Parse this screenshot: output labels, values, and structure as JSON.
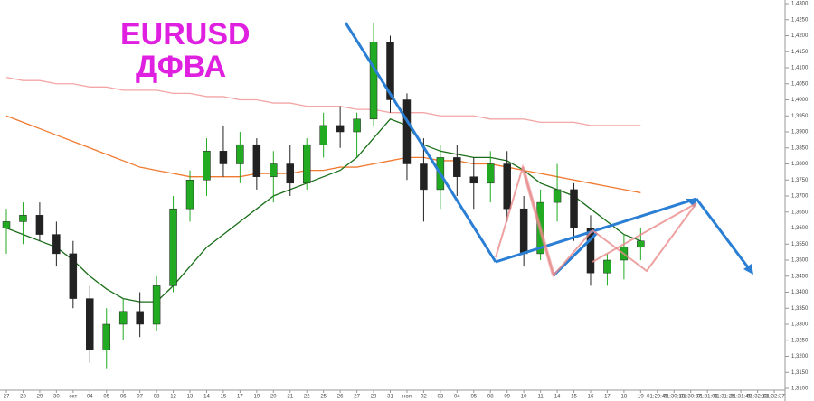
{
  "chart_data": {
    "type": "candlestick",
    "title": "EURUSD",
    "subtitle": "ДФВА",
    "categories": [
      "27",
      "28",
      "29",
      "30",
      "окт",
      "04",
      "05",
      "06",
      "07",
      "08",
      "12",
      "13",
      "14",
      "15",
      "17",
      "19",
      "20",
      "21",
      "22",
      "25",
      "26",
      "27",
      "28",
      "31",
      "ноя",
      "02",
      "03",
      "04",
      "05",
      "08",
      "09",
      "10",
      "11",
      "14",
      "15",
      "16",
      "17",
      "18",
      "19",
      "01:29:49",
      "01:30:13",
      "01:30:37",
      "01:31:01",
      "01:31:25",
      "01:31:49",
      "01:32:13",
      "01:32:37"
    ],
    "open": [
      1.36,
      1.362,
      1.364,
      1.358,
      1.352,
      1.338,
      1.322,
      1.33,
      1.334,
      1.33,
      1.342,
      1.366,
      1.375,
      1.384,
      1.38,
      1.386,
      1.376,
      1.38,
      1.374,
      1.386,
      1.392,
      1.39,
      1.394,
      1.418,
      1.4,
      1.38,
      1.372,
      1.382,
      1.376,
      1.374,
      1.38,
      1.366,
      1.352,
      1.368,
      1.372,
      1.36,
      1.346,
      1.35,
      1.354,
      null,
      null,
      null,
      null,
      null,
      null,
      null,
      null
    ],
    "high": [
      1.366,
      1.368,
      1.368,
      1.362,
      1.356,
      1.342,
      1.335,
      1.338,
      1.34,
      1.345,
      1.37,
      1.378,
      1.388,
      1.392,
      1.39,
      1.388,
      1.384,
      1.386,
      1.388,
      1.396,
      1.398,
      1.396,
      1.424,
      1.42,
      1.402,
      1.388,
      1.386,
      1.386,
      1.382,
      1.384,
      1.384,
      1.37,
      1.372,
      1.38,
      1.374,
      1.364,
      1.352,
      1.358,
      1.36,
      null,
      null,
      null,
      null,
      null,
      null,
      null,
      null
    ],
    "low": [
      1.352,
      1.355,
      1.356,
      1.348,
      1.335,
      1.318,
      1.316,
      1.325,
      1.326,
      1.328,
      1.34,
      1.362,
      1.37,
      1.376,
      1.374,
      1.372,
      1.368,
      1.37,
      1.372,
      1.382,
      1.385,
      1.382,
      1.392,
      1.396,
      1.375,
      1.362,
      1.366,
      1.37,
      1.366,
      1.368,
      1.362,
      1.348,
      1.35,
      1.362,
      1.356,
      1.342,
      1.342,
      1.344,
      1.35,
      null,
      null,
      null,
      null,
      null,
      null,
      null,
      null
    ],
    "close": [
      1.362,
      1.364,
      1.358,
      1.352,
      1.338,
      1.322,
      1.33,
      1.334,
      1.33,
      1.342,
      1.366,
      1.375,
      1.384,
      1.38,
      1.386,
      1.376,
      1.38,
      1.374,
      1.386,
      1.392,
      1.39,
      1.394,
      1.418,
      1.4,
      1.38,
      1.372,
      1.382,
      1.376,
      1.374,
      1.38,
      1.366,
      1.352,
      1.368,
      1.372,
      1.36,
      1.346,
      1.35,
      1.354,
      1.356,
      null,
      null,
      null,
      null,
      null,
      null,
      null,
      null
    ],
    "up_color": "#22aa22",
    "down_color": "#222222",
    "indicator_lines": [
      {
        "color": "#f4a6a6",
        "values": [
          1.407,
          1.406,
          1.406,
          1.405,
          1.405,
          1.404,
          1.404,
          1.403,
          1.403,
          1.403,
          1.402,
          1.402,
          1.401,
          1.401,
          1.4,
          1.4,
          1.399,
          1.399,
          1.398,
          1.398,
          1.398,
          1.397,
          1.397,
          1.396,
          1.396,
          1.396,
          1.395,
          1.395,
          1.395,
          1.394,
          1.394,
          1.394,
          1.393,
          1.393,
          1.393,
          1.392,
          1.392,
          1.392,
          1.392,
          null,
          null,
          null,
          null,
          null,
          null,
          null,
          null
        ]
      },
      {
        "color": "#f07a30",
        "values": [
          1.395,
          1.393,
          1.391,
          1.389,
          1.387,
          1.385,
          1.383,
          1.381,
          1.379,
          1.378,
          1.377,
          1.376,
          1.376,
          1.376,
          1.376,
          1.377,
          1.377,
          1.377,
          1.378,
          1.378,
          1.379,
          1.379,
          1.38,
          1.381,
          1.382,
          1.382,
          1.381,
          1.381,
          1.38,
          1.38,
          1.379,
          1.378,
          1.377,
          1.376,
          1.375,
          1.374,
          1.373,
          1.372,
          1.371,
          null,
          null,
          null,
          null,
          null,
          null,
          null,
          null
        ]
      },
      {
        "color": "#1a6e1a",
        "values": [
          1.36,
          1.358,
          1.356,
          1.354,
          1.35,
          1.345,
          1.341,
          1.338,
          1.337,
          1.337,
          1.342,
          1.348,
          1.354,
          1.358,
          1.362,
          1.366,
          1.37,
          1.372,
          1.374,
          1.376,
          1.378,
          1.382,
          1.388,
          1.394,
          1.392,
          1.386,
          1.384,
          1.383,
          1.382,
          1.382,
          1.381,
          1.378,
          1.374,
          1.372,
          1.37,
          1.366,
          1.362,
          1.358,
          1.356,
          null,
          null,
          null,
          null,
          null,
          null,
          null,
          null
        ]
      }
    ],
    "ylim": [
      1.31,
      1.43
    ],
    "yticks": [
      {
        "value": 1.31,
        "label": "1,3100"
      },
      {
        "value": 1.315,
        "label": "1,3150"
      },
      {
        "value": 1.32,
        "label": "1,3200"
      },
      {
        "value": 1.325,
        "label": "1,3250"
      },
      {
        "value": 1.33,
        "label": "1,3300"
      },
      {
        "value": 1.335,
        "label": "1,3350"
      },
      {
        "value": 1.34,
        "label": "1,3400"
      },
      {
        "value": 1.345,
        "label": "1,3450"
      },
      {
        "value": 1.35,
        "label": "1,3500"
      },
      {
        "value": 1.355,
        "label": "1,3550"
      },
      {
        "value": 1.36,
        "label": "1,3600"
      },
      {
        "value": 1.365,
        "label": "1,3650"
      },
      {
        "value": 1.37,
        "label": "1,3700"
      },
      {
        "value": 1.375,
        "label": "1,3750"
      },
      {
        "value": 1.38,
        "label": "1,3800"
      },
      {
        "value": 1.385,
        "label": "1,3850"
      },
      {
        "value": 1.39,
        "label": "1,3900"
      },
      {
        "value": 1.395,
        "label": "1,3950"
      },
      {
        "value": 1.4,
        "label": "1,4000"
      },
      {
        "value": 1.405,
        "label": "1,4050"
      },
      {
        "value": 1.41,
        "label": "1,4100"
      },
      {
        "value": 1.415,
        "label": "1,4150"
      },
      {
        "value": 1.42,
        "label": "1,4200"
      },
      {
        "value": 1.425,
        "label": "1,4250"
      },
      {
        "value": 1.43,
        "label": "1,4300"
      }
    ],
    "grid": false
  }
}
